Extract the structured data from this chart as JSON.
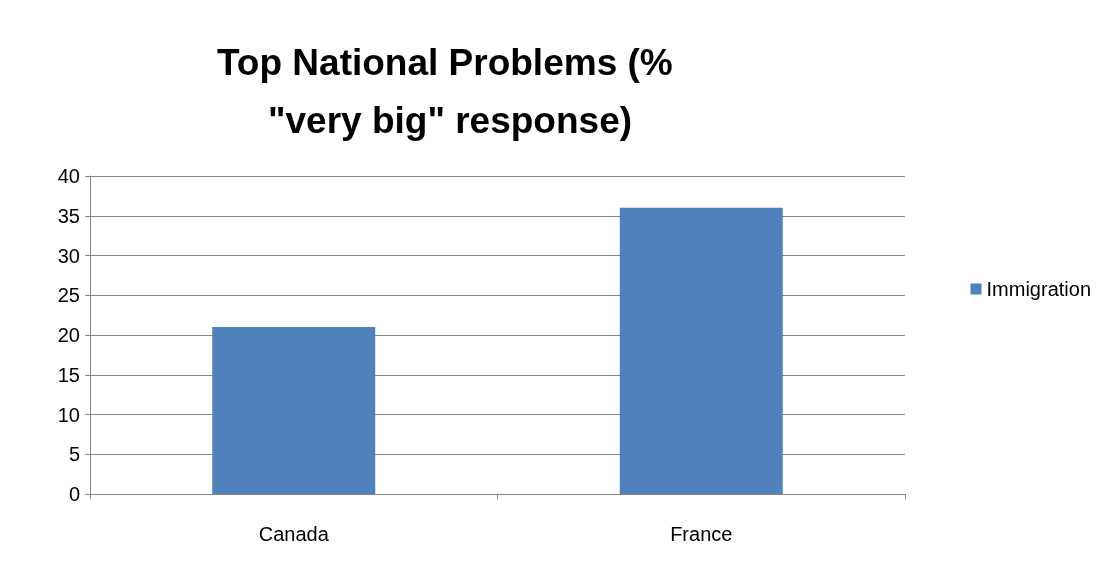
{
  "chart_data": {
    "type": "bar",
    "title": "Top National Problems (% \"very big\" response)",
    "categories": [
      "Canada",
      "France"
    ],
    "series": [
      {
        "name": "Immigration",
        "color": "#4f81bd",
        "values": [
          21,
          36
        ]
      }
    ],
    "ylim": [
      0,
      40
    ],
    "yticks": [
      0,
      5,
      10,
      15,
      20,
      25,
      30,
      35,
      40
    ],
    "grid": "y",
    "legend": "right"
  }
}
